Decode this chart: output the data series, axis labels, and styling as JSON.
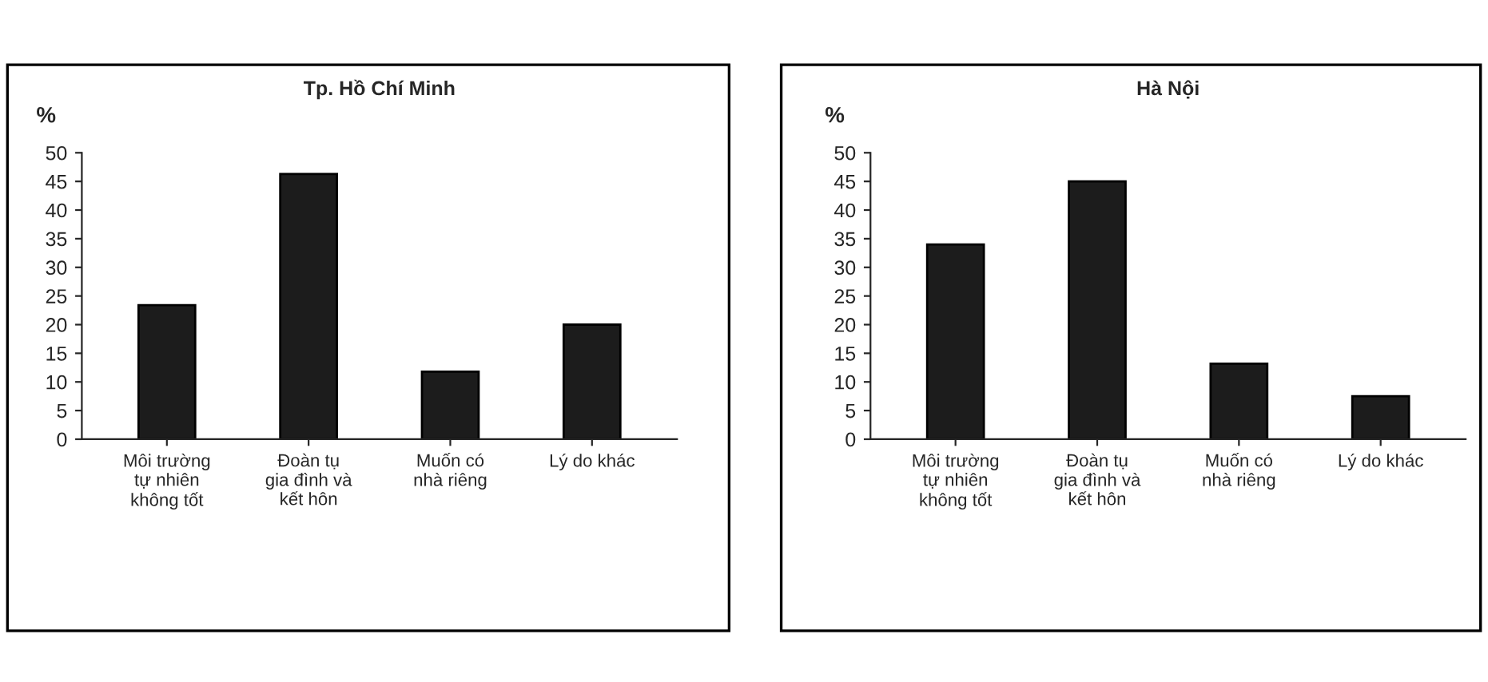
{
  "chart_data": [
    {
      "type": "bar",
      "title": "Tp. Hồ Chí Minh",
      "ylabel": "%",
      "categories": [
        "Môi trường\ntự nhiên\nkhông tốt",
        "Đoàn tụ\ngia đình và\nkết hôn",
        "Muốn có\nnhà riêng",
        "Lý do khác"
      ],
      "values": [
        23.4,
        46.3,
        11.8,
        20
      ],
      "color": "#1c1c1c",
      "ylim": [
        0,
        50
      ],
      "yticks": [
        0,
        5,
        10,
        15,
        20,
        25,
        30,
        35,
        40,
        45,
        50
      ],
      "grid": false,
      "legend": false
    },
    {
      "type": "bar",
      "title": "Hà Nội",
      "ylabel": "%",
      "categories": [
        "Môi trường\ntự nhiên\nkhông tốt",
        "Đoàn tụ\ngia đình và\nkết hôn",
        "Muốn có\nnhà riêng",
        "Lý do khác"
      ],
      "values": [
        34,
        45,
        13.2,
        7.5
      ],
      "color": "#1c1c1c",
      "ylim": [
        0,
        50
      ],
      "yticks": [
        0,
        5,
        10,
        15,
        20,
        25,
        30,
        35,
        40,
        45,
        50
      ],
      "grid": false,
      "legend": false
    }
  ]
}
